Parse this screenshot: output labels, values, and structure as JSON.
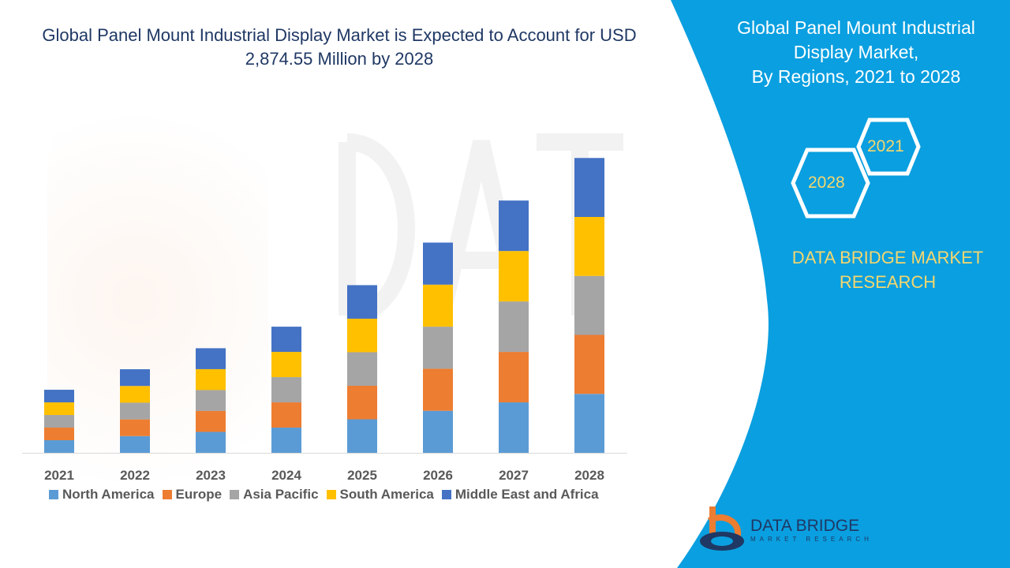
{
  "title": "Global Panel Mount Industrial Display Market is Expected to Account for USD 2,874.55 Million by 2028",
  "side_panel": {
    "title_line1": "Global Panel Mount Industrial",
    "title_line2": "Display Market,",
    "title_line3": "By Regions, 2021 to 2028",
    "hex_start": "2021",
    "hex_end": "2028",
    "brand_line1": "DATA BRIDGE MARKET",
    "brand_line2": "RESEARCH",
    "logo_text": "DATA BRIDGE",
    "logo_subtext": "MARKET RESEARCH",
    "panel_color": "#0a9fe0",
    "brand_color": "#f5d76e"
  },
  "watermark": {
    "text": "DATA BRIDGE",
    "subtext": "MARKET RESEARCH"
  },
  "chart_data": {
    "type": "bar",
    "stacked": true,
    "categories": [
      "2021",
      "2022",
      "2023",
      "2024",
      "2025",
      "2026",
      "2027",
      "2028"
    ],
    "series": [
      {
        "name": "North America",
        "color": "#5b9bd5",
        "values": [
          123,
          163,
          204,
          246,
          327,
          410,
          492,
          575
        ]
      },
      {
        "name": "Europe",
        "color": "#ed7d31",
        "values": [
          123,
          163,
          204,
          246,
          327,
          410,
          492,
          575
        ]
      },
      {
        "name": "Asia Pacific",
        "color": "#a5a5a5",
        "values": [
          123,
          163,
          204,
          246,
          327,
          410,
          492,
          575
        ]
      },
      {
        "name": "South America",
        "color": "#ffc000",
        "values": [
          123,
          163,
          204,
          246,
          327,
          410,
          492,
          575
        ]
      },
      {
        "name": "Middle East and Africa",
        "color": "#4472c4",
        "values": [
          123,
          163,
          204,
          246,
          327,
          410,
          492,
          575
        ]
      }
    ],
    "ylim": [
      0,
      3500
    ],
    "y_axis_visible": false,
    "grid": false,
    "legend_position": "bottom",
    "unit": "USD Million"
  }
}
